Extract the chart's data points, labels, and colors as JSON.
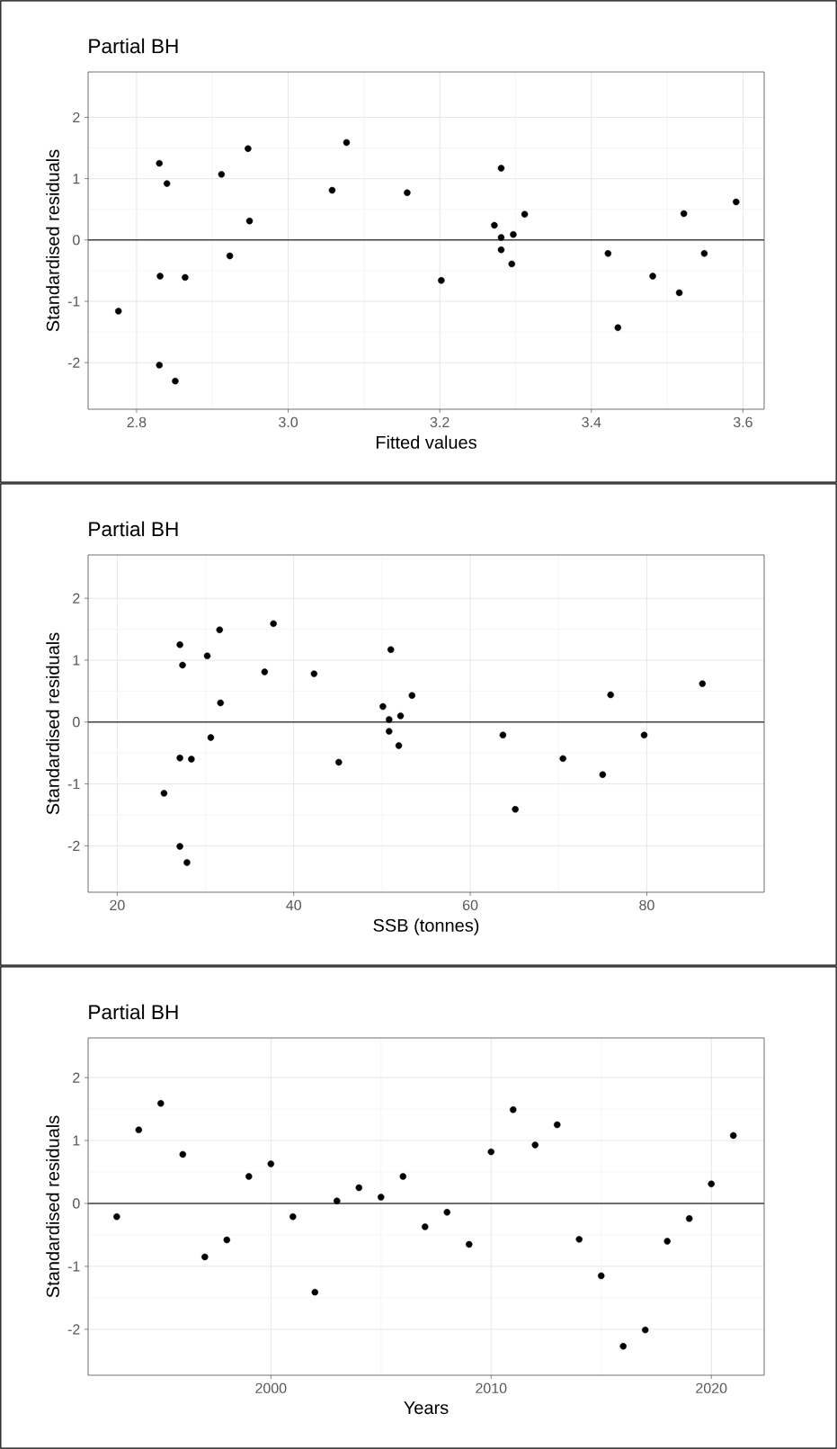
{
  "chart_data": [
    {
      "type": "scatter",
      "title": "Partial BH",
      "xlabel": "Fitted values",
      "ylabel": "Standardised residuals",
      "color": "#000000",
      "grid": true,
      "x": [
        2.776,
        2.83,
        2.84,
        2.831,
        2.864,
        2.83,
        2.851,
        2.912,
        2.923,
        2.947,
        2.949,
        3.058,
        3.077,
        3.157,
        3.202,
        3.272,
        3.281,
        3.281,
        3.281,
        3.297,
        3.295,
        3.312,
        3.422,
        3.435,
        3.481,
        3.516,
        3.522,
        3.549,
        3.591
      ],
      "values": [
        -1.16,
        1.25,
        0.92,
        -0.59,
        -0.61,
        -2.04,
        -2.3,
        1.07,
        -0.26,
        1.49,
        0.31,
        0.81,
        1.59,
        0.77,
        -0.66,
        0.24,
        1.17,
        0.04,
        -0.16,
        0.09,
        -0.39,
        0.42,
        -0.22,
        -1.43,
        -0.59,
        -0.86,
        0.43,
        -0.22,
        0.62
      ],
      "xlim": [
        2.736,
        3.628
      ],
      "ylim": [
        -2.76,
        2.74
      ],
      "xticks": [
        2.8,
        {
          "value": 3,
          "label": "3.0"
        },
        3.2,
        3.4,
        3.6
      ],
      "yticks": [
        -2,
        -1,
        0,
        1,
        2
      ],
      "ref_lines": [
        {
          "axis": "y",
          "value": 0
        }
      ]
    },
    {
      "type": "scatter",
      "title": "Partial BH",
      "xlabel": "SSB (tonnes)",
      "ylabel": "Standardised residuals",
      "color": "#000000",
      "grid": true,
      "x": [
        27.1,
        27.4,
        27.1,
        28.4,
        25.3,
        27.1,
        27.9,
        30.2,
        30.6,
        31.6,
        31.7,
        36.7,
        37.7,
        42.3,
        45.1,
        50.1,
        51.0,
        50.8,
        50.8,
        52.1,
        51.9,
        53.4,
        63.7,
        65.1,
        70.5,
        75.0,
        75.9,
        79.7,
        86.3
      ],
      "values": [
        1.25,
        0.92,
        -0.58,
        -0.6,
        -1.15,
        -2.01,
        -2.27,
        1.07,
        -0.25,
        1.49,
        0.31,
        0.81,
        1.59,
        0.78,
        -0.65,
        0.25,
        1.17,
        0.04,
        -0.15,
        0.1,
        -0.38,
        0.43,
        -0.21,
        -1.41,
        -0.59,
        -0.85,
        0.44,
        -0.21,
        0.62
      ],
      "xlim": [
        16.7,
        93.3
      ],
      "ylim": [
        -2.75,
        2.7
      ],
      "xticks": [
        20,
        40,
        60,
        80
      ],
      "yticks": [
        -2,
        -1,
        0,
        1,
        2
      ],
      "ref_lines": [
        {
          "axis": "y",
          "value": 0
        }
      ]
    },
    {
      "type": "scatter",
      "title": "Partial BH",
      "xlabel": "Years",
      "ylabel": "Standardised residuals",
      "color": "#000000",
      "grid": true,
      "x": [
        1993,
        1994,
        1995,
        1996,
        1997,
        1998,
        1999,
        2000,
        2001,
        2002,
        2003,
        2004,
        2005,
        2006,
        2007,
        2008,
        2009,
        2010,
        2011,
        2012,
        2013,
        2014,
        2015,
        2016,
        2017,
        2018,
        2019,
        2020,
        2021
      ],
      "values": [
        -0.21,
        1.17,
        1.59,
        0.78,
        -0.85,
        -0.58,
        0.43,
        0.63,
        -0.21,
        -1.41,
        0.04,
        0.25,
        0.1,
        0.43,
        -0.37,
        -0.14,
        -0.65,
        0.82,
        1.49,
        0.93,
        1.25,
        -0.57,
        -1.15,
        -2.27,
        -2.01,
        -0.6,
        -0.24,
        0.31,
        1.08
      ],
      "xlim": [
        1991.7,
        2022.4
      ],
      "ylim": [
        -2.73,
        2.63
      ],
      "xticks": [
        2000,
        2010,
        2020
      ],
      "yticks": [
        -2,
        -1,
        0,
        1,
        2
      ],
      "ref_lines": [
        {
          "axis": "y",
          "value": 0
        }
      ]
    }
  ]
}
